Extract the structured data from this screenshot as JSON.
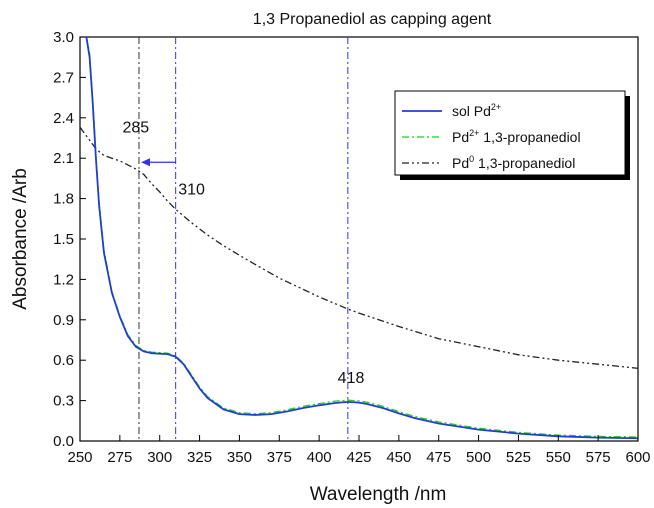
{
  "chart_data": {
    "type": "line",
    "title": "1,3 Propanediol as capping agent",
    "xlabel": "Wavelength  /nm",
    "ylabel": "Absorbance   /Arb",
    "xlim": [
      250,
      600
    ],
    "ylim": [
      0.0,
      3.0
    ],
    "xticks": [
      250,
      275,
      300,
      325,
      350,
      375,
      400,
      425,
      450,
      475,
      500,
      525,
      550,
      575,
      600
    ],
    "yticks": [
      "0.0",
      "0.3",
      "0.6",
      "0.9",
      "1.2",
      "1.5",
      "1.8",
      "2.1",
      "2.4",
      "2.7",
      "3.0"
    ],
    "grid": false,
    "legend_position": "top-right",
    "series": [
      {
        "name_parts": [
          "sol Pd",
          "2+",
          ""
        ],
        "color": "#1f3fcf",
        "style": "solid",
        "x": [
          254,
          256,
          258,
          260,
          262,
          265,
          270,
          275,
          280,
          285,
          290,
          295,
          300,
          305,
          310,
          315,
          320,
          325,
          330,
          340,
          350,
          360,
          370,
          380,
          390,
          400,
          410,
          418,
          425,
          430,
          440,
          450,
          460,
          475,
          500,
          525,
          550,
          575,
          600
        ],
        "y": [
          3.0,
          2.85,
          2.5,
          2.1,
          1.75,
          1.4,
          1.1,
          0.92,
          0.78,
          0.7,
          0.665,
          0.652,
          0.648,
          0.645,
          0.625,
          0.57,
          0.48,
          0.39,
          0.32,
          0.235,
          0.2,
          0.193,
          0.2,
          0.22,
          0.245,
          0.265,
          0.282,
          0.29,
          0.285,
          0.275,
          0.245,
          0.205,
          0.17,
          0.13,
          0.085,
          0.055,
          0.035,
          0.025,
          0.02
        ]
      },
      {
        "name_parts": [
          "Pd",
          "2+",
          " 1,3-propanediol"
        ],
        "color": "#22cc22",
        "style": "dashdot",
        "x": [
          254,
          256,
          258,
          260,
          262,
          265,
          270,
          275,
          280,
          285,
          290,
          295,
          300,
          305,
          310,
          315,
          320,
          325,
          330,
          340,
          350,
          360,
          370,
          380,
          390,
          400,
          410,
          418,
          425,
          430,
          440,
          450,
          460,
          475,
          500,
          525,
          550,
          575,
          600
        ],
        "y": [
          3.0,
          2.88,
          2.53,
          2.13,
          1.77,
          1.42,
          1.11,
          0.93,
          0.79,
          0.71,
          0.672,
          0.66,
          0.656,
          0.652,
          0.632,
          0.578,
          0.49,
          0.4,
          0.33,
          0.245,
          0.21,
          0.203,
          0.21,
          0.232,
          0.258,
          0.278,
          0.296,
          0.303,
          0.298,
          0.288,
          0.258,
          0.218,
          0.182,
          0.142,
          0.095,
          0.064,
          0.044,
          0.034,
          0.03
        ]
      },
      {
        "name_parts": [
          "Pd",
          "0",
          " 1,3-propanediol"
        ],
        "color": "#222222",
        "style": "dashdotdot",
        "x": [
          250,
          255,
          260,
          265,
          270,
          275,
          280,
          285,
          290,
          295,
          300,
          305,
          310,
          320,
          330,
          340,
          350,
          360,
          375,
          400,
          418,
          425,
          450,
          475,
          500,
          525,
          550,
          575,
          600
        ],
        "y": [
          2.33,
          2.25,
          2.17,
          2.12,
          2.1,
          2.08,
          2.05,
          2.02,
          1.98,
          1.91,
          1.85,
          1.78,
          1.72,
          1.62,
          1.53,
          1.45,
          1.38,
          1.31,
          1.21,
          1.07,
          0.98,
          0.95,
          0.85,
          0.76,
          0.7,
          0.64,
          0.6,
          0.57,
          0.54
        ]
      }
    ],
    "reference_lines": [
      {
        "x": 287,
        "color": "#333333",
        "style": "dashdot"
      },
      {
        "x": 310,
        "color": "#3333ee",
        "style": "dashdot"
      },
      {
        "x": 418,
        "color": "#3333ee",
        "style": "dashdot"
      }
    ],
    "arrow": {
      "from_x": 310,
      "to_x": 287,
      "y": 2.07,
      "color": "#3333ee"
    },
    "annotations": [
      {
        "text": "285",
        "x": 285,
        "y": 2.29
      },
      {
        "text": "310",
        "x": 320,
        "y": 1.83
      },
      {
        "text": "418",
        "x": 420,
        "y": 0.43
      }
    ]
  }
}
